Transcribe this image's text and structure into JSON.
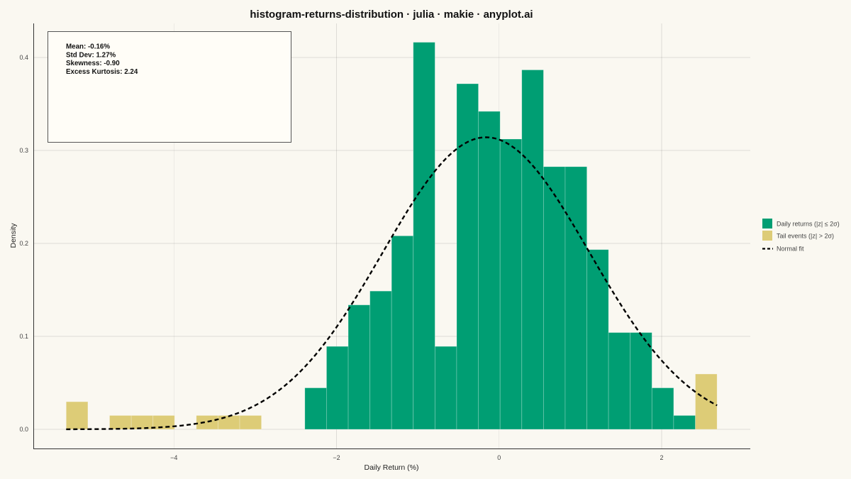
{
  "colors": {
    "background": "#FAF8F1",
    "stats_box": "#FFFDF7",
    "daily": "#009E73",
    "tail": "#DDCC77",
    "fit": "#000000"
  },
  "stats_box": {
    "lines": [
      "Mean: -0.16%",
      "Std Dev: 1.27%",
      "Skewness: -0.90",
      "Excess Kurtosis: 2.24"
    ]
  },
  "chart_data": {
    "type": "bar",
    "title": "histogram-returns-distribution · julia · makie · anyplot.ai",
    "xlabel": "Daily Return (%)",
    "ylabel": "Density",
    "xlim": [
      -5.73,
      3.09
    ],
    "ylim": [
      -0.0206,
      0.4366
    ],
    "xticks": [
      -4,
      -2,
      0,
      2
    ],
    "xtick_labels": [
      "−4",
      "−2",
      "0",
      "2"
    ],
    "yticks": [
      0,
      0.1,
      0.2,
      0.3,
      0.4
    ],
    "ytick_labels": [
      "0.0",
      "0.1",
      "0.2",
      "0.3",
      "0.4"
    ],
    "grid": true,
    "legend": "right",
    "series": [
      {
        "name": "Daily returns (|z| ≤ 2σ)",
        "color": "#009E73",
        "bins": [
          {
            "x0": -2.39,
            "x1": -2.123,
            "density": 0.0446
          },
          {
            "x0": -2.123,
            "x1": -1.856,
            "density": 0.0892
          },
          {
            "x0": -1.856,
            "x1": -1.589,
            "density": 0.1338
          },
          {
            "x0": -1.589,
            "x1": -1.323,
            "density": 0.1487
          },
          {
            "x0": -1.323,
            "x1": -1.056,
            "density": 0.2081
          },
          {
            "x0": -1.056,
            "x1": -0.789,
            "density": 0.4163
          },
          {
            "x0": -0.789,
            "x1": -0.522,
            "density": 0.0892
          },
          {
            "x0": -0.522,
            "x1": -0.255,
            "density": 0.3717
          },
          {
            "x0": -0.255,
            "x1": 0.012,
            "density": 0.342
          },
          {
            "x0": 0.012,
            "x1": 0.279,
            "density": 0.3122
          },
          {
            "x0": 0.279,
            "x1": 0.546,
            "density": 0.3866
          },
          {
            "x0": 0.546,
            "x1": 0.813,
            "density": 0.2825
          },
          {
            "x0": 0.813,
            "x1": 1.08,
            "density": 0.2825
          },
          {
            "x0": 1.08,
            "x1": 1.346,
            "density": 0.1933
          },
          {
            "x0": 1.346,
            "x1": 1.613,
            "density": 0.1041
          },
          {
            "x0": 1.613,
            "x1": 1.88,
            "density": 0.1041
          },
          {
            "x0": 1.88,
            "x1": 2.147,
            "density": 0.0446
          },
          {
            "x0": 2.147,
            "x1": 2.414,
            "density": 0.0149
          }
        ]
      },
      {
        "name": "Tail events (|z| > 2σ)",
        "color": "#DDCC77",
        "bins": [
          {
            "x0": -5.326,
            "x1": -5.059,
            "density": 0.0297
          },
          {
            "x0": -4.792,
            "x1": -4.525,
            "density": 0.0149
          },
          {
            "x0": -4.525,
            "x1": -4.258,
            "density": 0.0149
          },
          {
            "x0": -4.258,
            "x1": -3.992,
            "density": 0.0149
          },
          {
            "x0": -3.725,
            "x1": -3.458,
            "density": 0.0149
          },
          {
            "x0": -3.458,
            "x1": -3.191,
            "density": 0.0149
          },
          {
            "x0": -3.191,
            "x1": -2.924,
            "density": 0.0149
          },
          {
            "x0": 2.414,
            "x1": 2.681,
            "density": 0.0595
          }
        ]
      }
    ],
    "normal_fit": {
      "name": "Normal fit",
      "color": "#000000",
      "mean": -0.16,
      "sd": 1.27,
      "x_range": [
        -5.326,
        2.681
      ]
    }
  }
}
